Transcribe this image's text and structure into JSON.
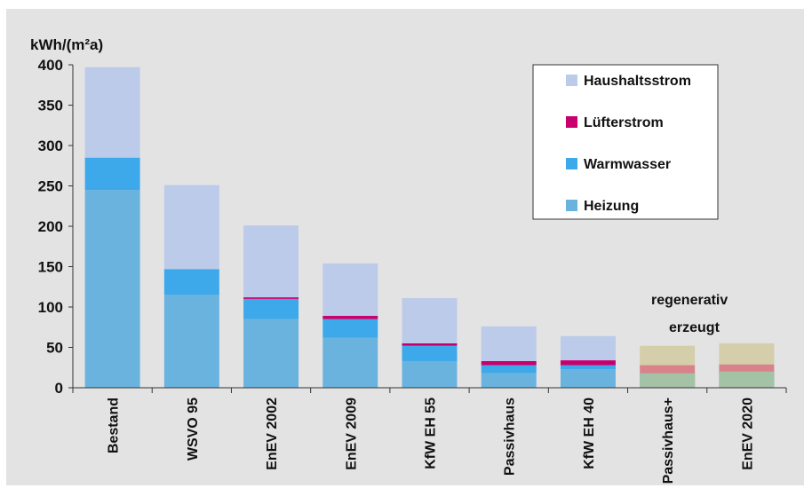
{
  "chart_data": {
    "type": "bar",
    "stacked": true,
    "ylabel": "kWh/(m²a)",
    "ylim": [
      0,
      400
    ],
    "yticks": [
      0,
      50,
      100,
      150,
      200,
      250,
      300,
      350,
      400
    ],
    "grid": false,
    "legend_position": "top-right",
    "categories": [
      "Bestand",
      "WSVO 95",
      "EnEV 2002",
      "EnEV 2009",
      "KfW EH 55",
      "Passivhaus",
      "KfW EH 40",
      "Passivhaus+",
      "EnEV 2020"
    ],
    "series": [
      {
        "name": "Heizung",
        "color": "#6bb3df",
        "values": [
          245,
          115,
          85,
          62,
          33,
          18,
          23,
          10,
          13
        ]
      },
      {
        "name": "Warmwasser",
        "color": "#3da9ea",
        "values": [
          40,
          32,
          25,
          23,
          19,
          10,
          5,
          8,
          7
        ]
      },
      {
        "name": "Lüfterstrom",
        "color": "#c8006e",
        "values": [
          0,
          0,
          2,
          4,
          3,
          5,
          6,
          0,
          0
        ]
      },
      {
        "name": "Haushaltsstrom",
        "color": "#bccbe9",
        "values": [
          112,
          104,
          89,
          65,
          56,
          43,
          30,
          0,
          0
        ]
      }
    ],
    "overlay_bars": [
      {
        "category": "Passivhaus+",
        "segments": [
          {
            "color": "#a3c2a6",
            "from": 0,
            "to": 18
          },
          {
            "color": "#d9828a",
            "from": 18,
            "to": 28
          },
          {
            "color": "#d4cfaa",
            "from": 28,
            "to": 52
          }
        ]
      },
      {
        "category": "EnEV 2020",
        "segments": [
          {
            "color": "#a3c2a6",
            "from": 0,
            "to": 20
          },
          {
            "color": "#d9828a",
            "from": 20,
            "to": 29
          },
          {
            "color": "#d4cfaa",
            "from": 29,
            "to": 55
          }
        ]
      }
    ],
    "annotation": {
      "line1": "regenerativ",
      "line2": "erzeugt"
    },
    "legend_order": [
      "Haushaltsstrom",
      "Lüfterstrom",
      "Warmwasser",
      "Heizung"
    ]
  }
}
